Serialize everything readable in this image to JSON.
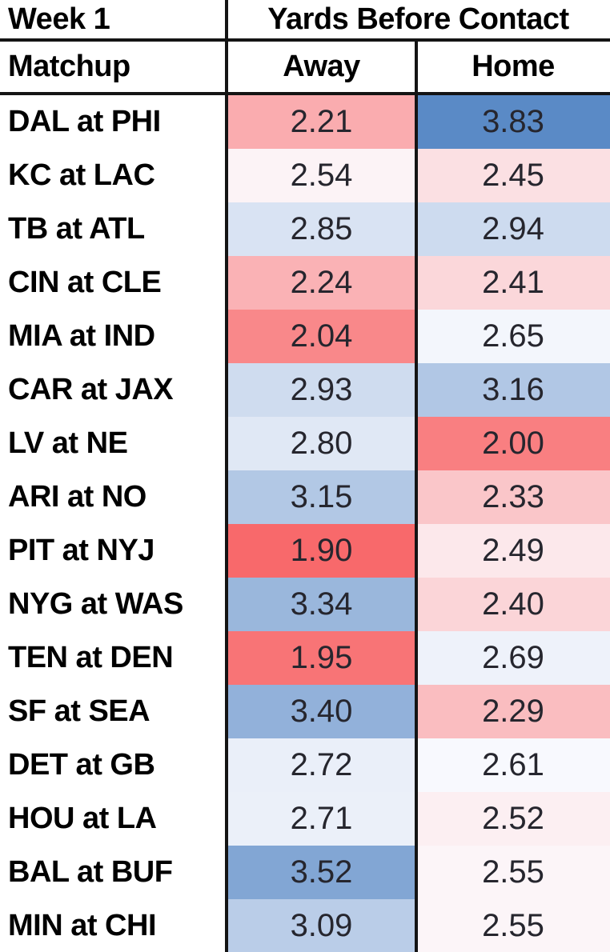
{
  "table": {
    "week_label": "Week 1",
    "title": "Yards Before Contact",
    "columns": {
      "matchup": "Matchup",
      "away": "Away",
      "home": "Home"
    }
  },
  "chart_data": {
    "type": "heatmap",
    "title": "Yards Before Contact",
    "week": "Week 1",
    "columns": [
      "Matchup",
      "Away",
      "Home"
    ],
    "color_scale": {
      "description": "diverging red-white-blue, low=red high=blue",
      "min_value": 1.9,
      "mid_value": 2.58,
      "max_value": 3.83,
      "min_color": "#F8696B",
      "mid_color": "#FCFCFF",
      "max_color": "#5A8AC6"
    },
    "rows": [
      {
        "matchup": "DAL at PHI",
        "away": "2.21",
        "home": "3.83",
        "away_color": "#FAACAF",
        "home_color": "#5A8AC6"
      },
      {
        "matchup": "KC at LAC",
        "away": "2.54",
        "home": "2.45",
        "away_color": "#FCF3F6",
        "home_color": "#FBE0E3"
      },
      {
        "matchup": "TB at ATL",
        "away": "2.85",
        "home": "2.94",
        "away_color": "#D9E3F3",
        "home_color": "#CDDBEF"
      },
      {
        "matchup": "CIN at CLE",
        "away": "2.24",
        "home": "2.41",
        "away_color": "#FAB2B5",
        "home_color": "#FBD7DA"
      },
      {
        "matchup": "MIA at IND",
        "away": "2.04",
        "home": "2.65",
        "away_color": "#F9888A",
        "home_color": "#F3F6FC"
      },
      {
        "matchup": "CAR at JAX",
        "away": "2.93",
        "home": "3.16",
        "away_color": "#CFDCEF",
        "home_color": "#B1C7E5"
      },
      {
        "matchup": "LV at NE",
        "away": "2.80",
        "home": "2.00",
        "away_color": "#E0E8F5",
        "home_color": "#F97F81"
      },
      {
        "matchup": "ARI at NO",
        "away": "3.15",
        "home": "2.33",
        "away_color": "#B2C8E5",
        "home_color": "#FAC6C9"
      },
      {
        "matchup": "PIT at NYJ",
        "away": "1.90",
        "home": "2.49",
        "away_color": "#F8696B",
        "home_color": "#FCE8EB"
      },
      {
        "matchup": "NYG at WAS",
        "away": "3.34",
        "home": "2.40",
        "away_color": "#9AB7DC",
        "home_color": "#FBD5D8"
      },
      {
        "matchup": "TEN at DEN",
        "away": "1.95",
        "home": "2.69",
        "away_color": "#F87476",
        "home_color": "#EEF2FA"
      },
      {
        "matchup": "SF at SEA",
        "away": "3.40",
        "home": "2.29",
        "away_color": "#92B1DA",
        "home_color": "#FABDC0"
      },
      {
        "matchup": "DET at GB",
        "away": "2.72",
        "home": "2.61",
        "away_color": "#EAEFF9",
        "home_color": "#F8F9FE"
      },
      {
        "matchup": "HOU at LA",
        "away": "2.71",
        "home": "2.52",
        "away_color": "#EBF0F9",
        "home_color": "#FCEFF2"
      },
      {
        "matchup": "BAL at BUF",
        "away": "3.52",
        "home": "2.55",
        "away_color": "#82A6D4",
        "home_color": "#FCF5F8"
      },
      {
        "matchup": "MIN at CHI",
        "away": "3.09",
        "home": "2.55",
        "away_color": "#BACDE8",
        "home_color": "#FCF5F8"
      }
    ]
  }
}
